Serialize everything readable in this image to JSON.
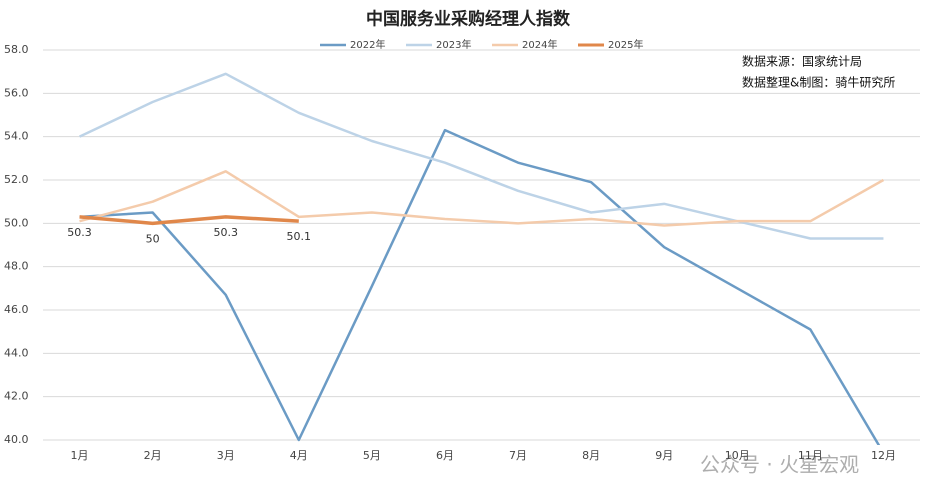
{
  "chart_data": {
    "type": "line",
    "title": "中国服务业采购经理人指数",
    "categories": [
      "1月",
      "2月",
      "3月",
      "4月",
      "5月",
      "6月",
      "7月",
      "8月",
      "9月",
      "10月",
      "11月",
      "12月"
    ],
    "series": [
      {
        "name": "2022年",
        "color": "#6b9bc5",
        "values": [
          50.3,
          50.5,
          46.7,
          40.0,
          47.1,
          54.3,
          52.8,
          51.9,
          48.9,
          47.0,
          45.1,
          39.4
        ]
      },
      {
        "name": "2023年",
        "color": "#bdd3e7",
        "values": [
          54.0,
          55.6,
          56.9,
          55.1,
          53.8,
          52.8,
          51.5,
          50.5,
          50.9,
          50.1,
          49.3,
          49.3
        ]
      },
      {
        "name": "2024年",
        "color": "#f4cbab",
        "values": [
          50.1,
          51.0,
          52.4,
          50.3,
          50.5,
          50.2,
          50.0,
          50.2,
          49.9,
          50.1,
          50.1,
          52.0
        ]
      },
      {
        "name": "2025年",
        "color": "#e0874a",
        "values": [
          50.3,
          50.0,
          50.3,
          50.1,
          null,
          null,
          null,
          null,
          null,
          null,
          null,
          null
        ]
      }
    ],
    "data_labels_series": 3,
    "ylim": [
      40,
      58
    ],
    "yticks": [
      {
        "value": 40,
        "label": "40.0"
      },
      {
        "value": 42,
        "label": "42.0"
      },
      {
        "value": 44,
        "label": "44.0"
      },
      {
        "value": 46,
        "label": "46.0"
      },
      {
        "value": 48,
        "label": "48.0"
      },
      {
        "value": 50,
        "label": "50.0"
      },
      {
        "value": 52,
        "label": "52.0"
      },
      {
        "value": 54,
        "label": "54.0"
      },
      {
        "value": 56,
        "label": "56.0"
      },
      {
        "value": 58,
        "label": "58.0"
      }
    ],
    "grid": true,
    "annotations": [
      "数据来源：国家统计局",
      "数据整理&制图：骑牛研究所"
    ],
    "watermark": "公众号 · 火星宏观"
  }
}
